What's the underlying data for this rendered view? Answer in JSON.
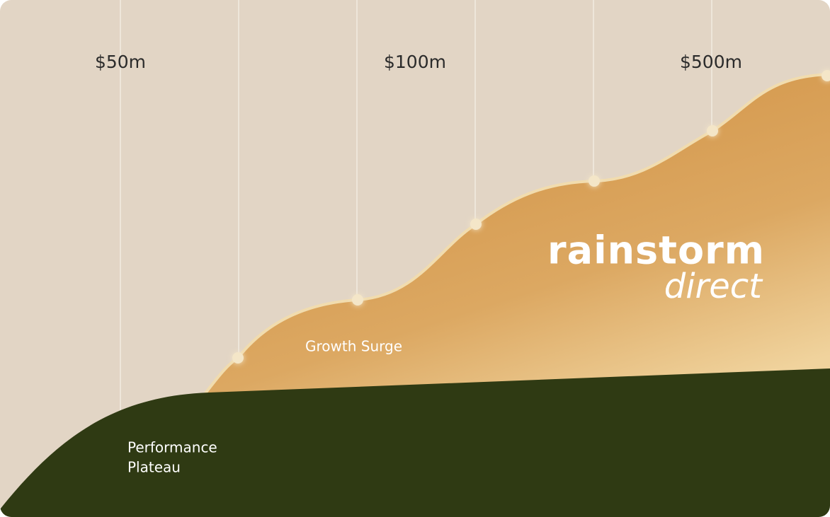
{
  "milestones": [
    "$50m",
    "$100m",
    "$500m"
  ],
  "zones": {
    "growth": "Growth Surge",
    "plateau": [
      "Performance",
      "Plateau"
    ]
  },
  "brand": {
    "name": "rainstorm",
    "tagline": "direct"
  }
}
